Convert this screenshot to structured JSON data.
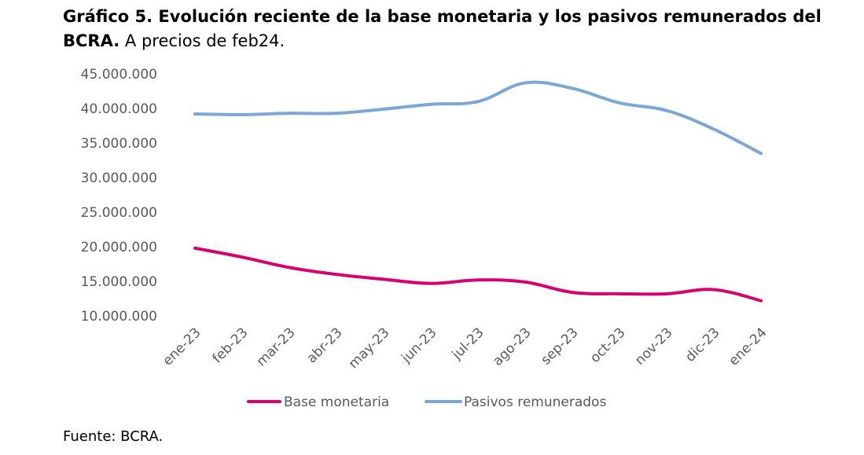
{
  "title": {
    "bold": "Gráfico 5. Evolución reciente de la base monetaria y los pasivos remunerados del BCRA.",
    "normal": "A precios de feb24."
  },
  "source": "Fuente: BCRA.",
  "chart_data": {
    "type": "line",
    "categories": [
      "ene-23",
      "feb-23",
      "mar-23",
      "abr-23",
      "may-23",
      "jun-23",
      "jul-23",
      "ago-23",
      "sep-23",
      "oct-23",
      "nov-23",
      "dic-23",
      "ene-24"
    ],
    "series": [
      {
        "name": "Base monetaria",
        "color": "#d6006e",
        "values": [
          19800000,
          18500000,
          17000000,
          16000000,
          15300000,
          14700000,
          15200000,
          14900000,
          13400000,
          13200000,
          13200000,
          13800000,
          12200000
        ]
      },
      {
        "name": "Pasivos remunerados",
        "color": "#7aa7d6",
        "values": [
          39200000,
          39100000,
          39300000,
          39300000,
          39900000,
          40600000,
          41000000,
          43700000,
          42900000,
          40800000,
          39700000,
          37000000,
          33500000
        ]
      }
    ],
    "yticks": [
      "45.000.000",
      "40.000.000",
      "35.000.000",
      "30.000.000",
      "25.000.000",
      "20.000.000",
      "15.000.000",
      "10.000.000"
    ],
    "ylim": [
      10000000,
      45000000
    ],
    "grid": false,
    "legend": "bottom"
  }
}
